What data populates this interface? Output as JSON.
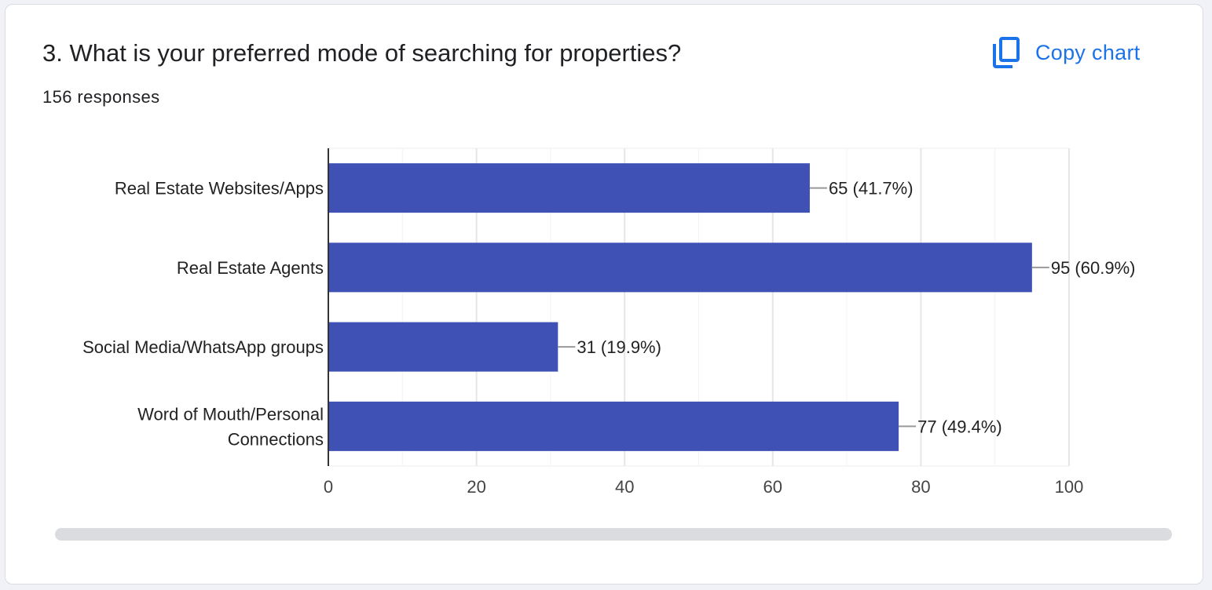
{
  "question": {
    "title": "3. What is your preferred mode of searching for properties?",
    "responses": "156 responses"
  },
  "copy_button": {
    "label": "Copy chart",
    "icon": "copy-icon",
    "color": "#1a73e8"
  },
  "chart_data": {
    "type": "bar",
    "orientation": "horizontal",
    "categories": [
      [
        "Real Estate Websites/Apps"
      ],
      [
        "Real Estate Agents"
      ],
      [
        "Social Media/WhatsApp groups"
      ],
      [
        "Word of Mouth/Personal",
        "Connections"
      ]
    ],
    "values": [
      65,
      95,
      31,
      77
    ],
    "data_labels": [
      "65 (41.7%)",
      "95 (60.9%)",
      "31 (19.9%)",
      "77 (49.4%)"
    ],
    "xlim": [
      0,
      100
    ],
    "x_ticks": [
      "0",
      "20",
      "40",
      "60",
      "80",
      "100"
    ],
    "grid": true,
    "bar_color": "#3f51b5",
    "title": "",
    "xlabel": "",
    "ylabel": ""
  }
}
